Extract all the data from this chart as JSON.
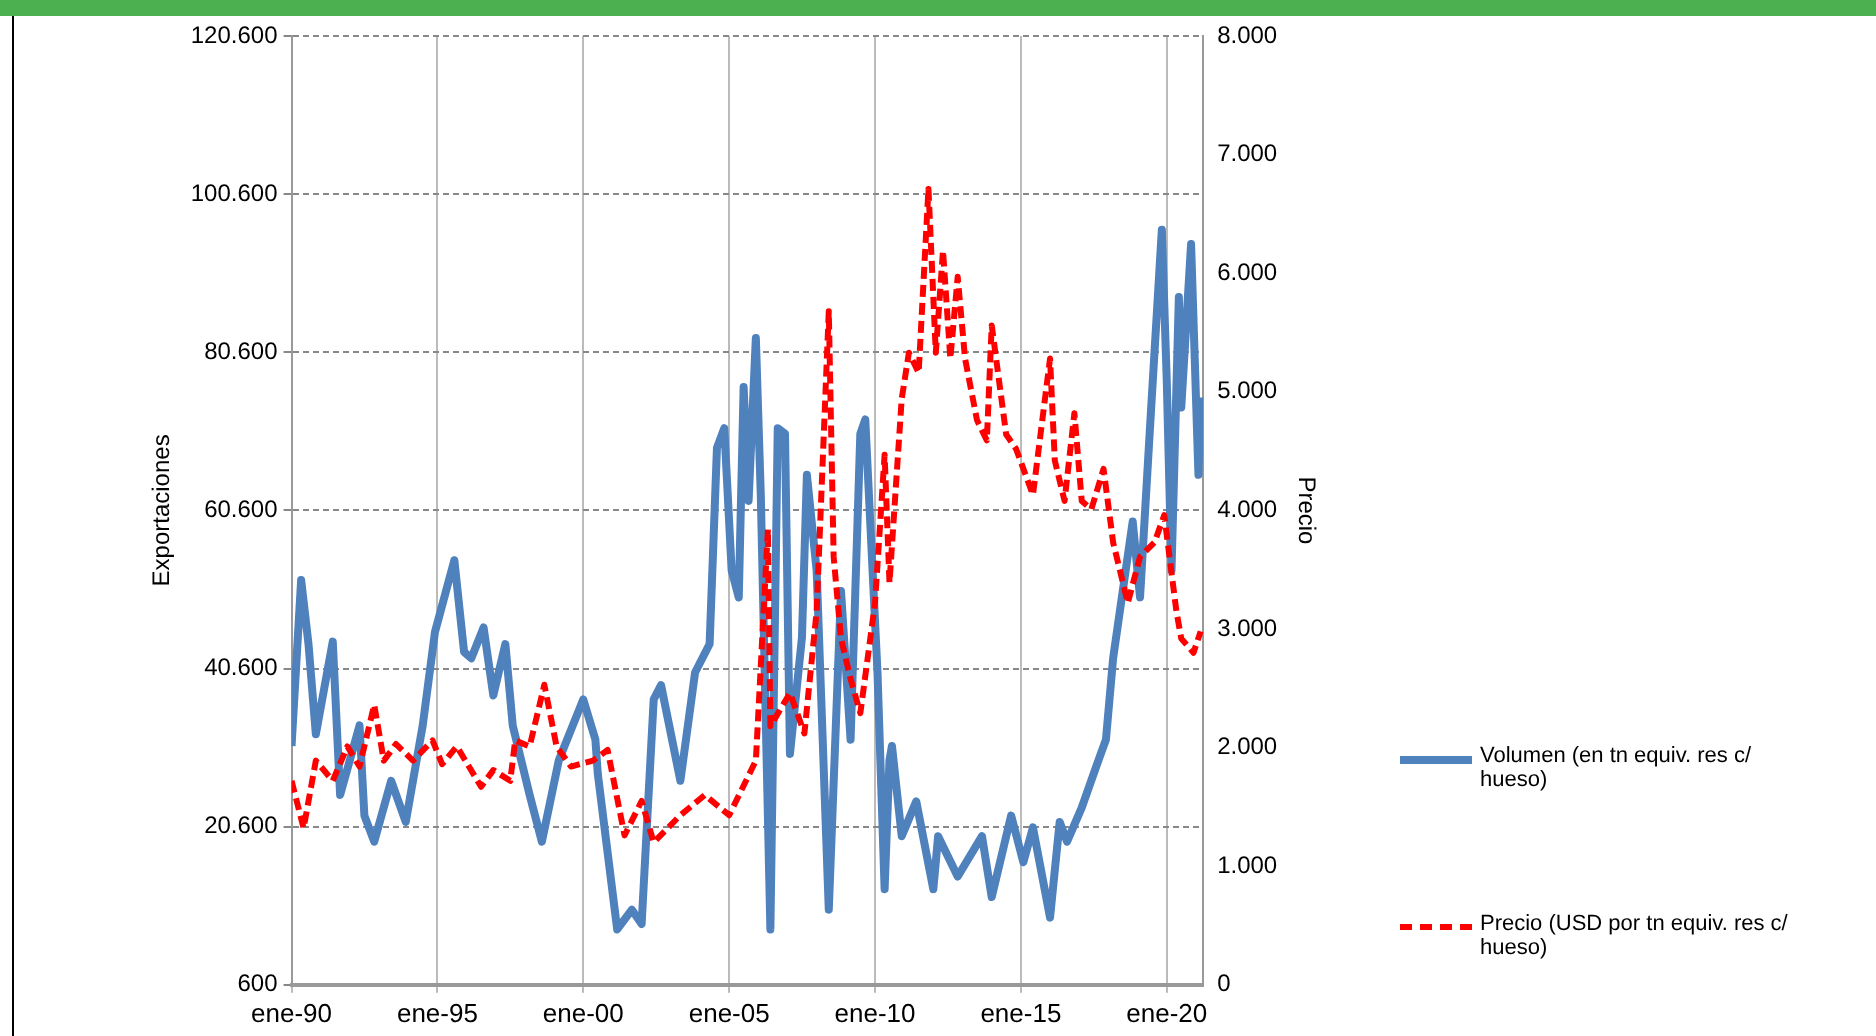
{
  "chart_data": {
    "type": "line",
    "ylabel": "Exportaciones",
    "y2label": "Precio",
    "legend": "right",
    "grid": true,
    "marker": "none",
    "xlim": [
      "1990-01",
      "2021-04"
    ],
    "xticks": [
      {
        "value": "1990-01",
        "label": "ene-90"
      },
      {
        "value": "1995-01",
        "label": "ene-95"
      },
      {
        "value": "2000-01",
        "label": "ene-00"
      },
      {
        "value": "2005-01",
        "label": "ene-05"
      },
      {
        "value": "2010-01",
        "label": "ene-10"
      },
      {
        "value": "2015-01",
        "label": "ene-15"
      },
      {
        "value": "2020-01",
        "label": "ene-20"
      }
    ],
    "ylim": [
      600,
      120600
    ],
    "yticks": [
      {
        "value": 600,
        "label": "600"
      },
      {
        "value": 20600,
        "label": "20.600"
      },
      {
        "value": 40600,
        "label": "40.600"
      },
      {
        "value": 60600,
        "label": "60.600"
      },
      {
        "value": 80600,
        "label": "80.600"
      },
      {
        "value": 100600,
        "label": "100.600"
      },
      {
        "value": 120600,
        "label": "120.600"
      }
    ],
    "y2lim": [
      0,
      8000
    ],
    "y2ticks": [
      0,
      {
        "value": 1000,
        "label": "1.000"
      },
      {
        "value": 2000,
        "label": "2.000"
      },
      {
        "value": 3000,
        "label": "3.000"
      },
      {
        "value": 4000,
        "label": "4.000"
      },
      {
        "value": 5000,
        "label": "5.000"
      },
      {
        "value": 6000,
        "label": "6.000"
      },
      {
        "value": 7000,
        "label": "7.000"
      },
      {
        "value": 8000,
        "label": "8.000"
      }
    ],
    "series": [
      {
        "name": "Volumen (en tn equiv. res c/ hueso)",
        "color": "#4f81bd",
        "line_style": "solid",
        "axis": "y",
        "x": [
          "1990-01",
          "1990-05",
          "1990-08",
          "1990-11",
          "1991-06",
          "1991-09",
          "1992-05",
          "1992-07",
          "1992-11",
          "1993-06",
          "1993-12",
          "1994-07",
          "1994-12",
          "1995-08",
          "1995-12",
          "1996-03",
          "1996-08",
          "1996-12",
          "1997-05",
          "1997-08",
          "1998-03",
          "1998-08",
          "1999-03",
          "2000-01",
          "2000-06",
          "2000-07",
          "2001-03",
          "2001-09",
          "2002-01",
          "2002-06",
          "2002-09",
          "2003-05",
          "2003-11",
          "2004-05",
          "2004-08",
          "2004-11",
          "2005-02",
          "2005-05",
          "2005-07",
          "2005-09",
          "2005-12",
          "2006-02",
          "2006-06",
          "2006-09",
          "2006-12",
          "2007-02",
          "2007-07",
          "2007-09",
          "2008-01",
          "2008-06",
          "2008-11",
          "2009-03",
          "2009-07",
          "2009-09",
          "2010-02",
          "2010-05",
          "2010-07",
          "2010-08",
          "2010-12",
          "2011-06",
          "2012-01",
          "2012-03",
          "2012-11",
          "2013-09",
          "2014-01",
          "2014-09",
          "2015-02",
          "2015-06",
          "2016-01",
          "2016-05",
          "2016-08",
          "2017-02",
          "2017-08",
          "2017-12",
          "2018-03",
          "2018-11",
          "2019-02",
          "2019-06",
          "2019-08",
          "2019-11",
          "2020-01",
          "2020-03",
          "2020-06",
          "2020-07",
          "2020-11",
          "2021-02",
          "2021-03"
        ],
        "values": [
          30800,
          51800,
          43700,
          32300,
          44000,
          24600,
          33400,
          22000,
          18700,
          26400,
          21200,
          33400,
          45200,
          54300,
          42700,
          41900,
          45800,
          37200,
          43700,
          33400,
          24600,
          18700,
          29000,
          36700,
          31600,
          27300,
          7600,
          10100,
          8300,
          36700,
          38500,
          26400,
          40100,
          43700,
          68500,
          71000,
          53000,
          49600,
          76200,
          61800,
          82400,
          62500,
          7600,
          71000,
          70300,
          29800,
          44500,
          65100,
          53000,
          10100,
          50400,
          31600,
          70300,
          72100,
          40100,
          12700,
          29000,
          30800,
          19400,
          23800,
          12700,
          19400,
          14300,
          19400,
          11700,
          22000,
          16100,
          20500,
          9100,
          21200,
          18700,
          23000,
          28200,
          31600,
          41900,
          59200,
          49600,
          70300,
          80600,
          96100,
          77200,
          53000,
          87600,
          73600,
          94300,
          65100,
          74900
        ]
      },
      {
        "name": "Precio (USD por tn equiv. res c/ hueso)",
        "color": "#ff0000",
        "line_style": "dashed",
        "axis": "y2",
        "x": [
          "1990-01",
          "1990-06",
          "1990-11",
          "1991-06",
          "1991-12",
          "1992-05",
          "1992-11",
          "1993-03",
          "1993-08",
          "1994-03",
          "1994-11",
          "1995-03",
          "1995-09",
          "1996-07",
          "1996-12",
          "1997-07",
          "1997-09",
          "1998-03",
          "1998-09",
          "1999-02",
          "1999-08",
          "2000-05",
          "2000-11",
          "2001-06",
          "2002-01",
          "2002-06",
          "2003-05",
          "2004-03",
          "2005-01",
          "2005-12",
          "2006-05",
          "2006-06",
          "2007-02",
          "2007-08",
          "2008-01",
          "2008-06",
          "2008-08",
          "2008-11",
          "2009-03",
          "2009-07",
          "2010-01",
          "2010-05",
          "2010-07",
          "2010-12",
          "2011-03",
          "2011-07",
          "2011-11",
          "2012-02",
          "2012-05",
          "2012-08",
          "2012-11",
          "2013-02",
          "2013-07",
          "2013-11",
          "2014-01",
          "2014-07",
          "2014-11",
          "2015-06",
          "2016-01",
          "2016-03",
          "2016-07",
          "2016-11",
          "2017-02",
          "2017-06",
          "2017-11",
          "2018-03",
          "2018-09",
          "2019-02",
          "2019-08",
          "2019-12",
          "2020-05",
          "2020-07",
          "2020-12",
          "2021-03"
        ],
        "values": [
          1720,
          1320,
          1890,
          1720,
          2010,
          1840,
          2360,
          1890,
          2030,
          1890,
          2060,
          1860,
          2010,
          1670,
          1810,
          1720,
          2060,
          2010,
          2530,
          2010,
          1840,
          1890,
          1980,
          1260,
          1550,
          1200,
          1430,
          1600,
          1430,
          1890,
          3840,
          2180,
          2460,
          2120,
          3150,
          5680,
          3610,
          2920,
          2580,
          2290,
          3220,
          4470,
          3390,
          4940,
          5330,
          5160,
          6710,
          5330,
          6190,
          5280,
          5970,
          5280,
          4760,
          4590,
          5560,
          4640,
          4520,
          4130,
          5280,
          4420,
          4080,
          4820,
          4080,
          4010,
          4350,
          3730,
          3220,
          3610,
          3730,
          3960,
          3150,
          2920,
          2800,
          2980
        ]
      }
    ]
  }
}
